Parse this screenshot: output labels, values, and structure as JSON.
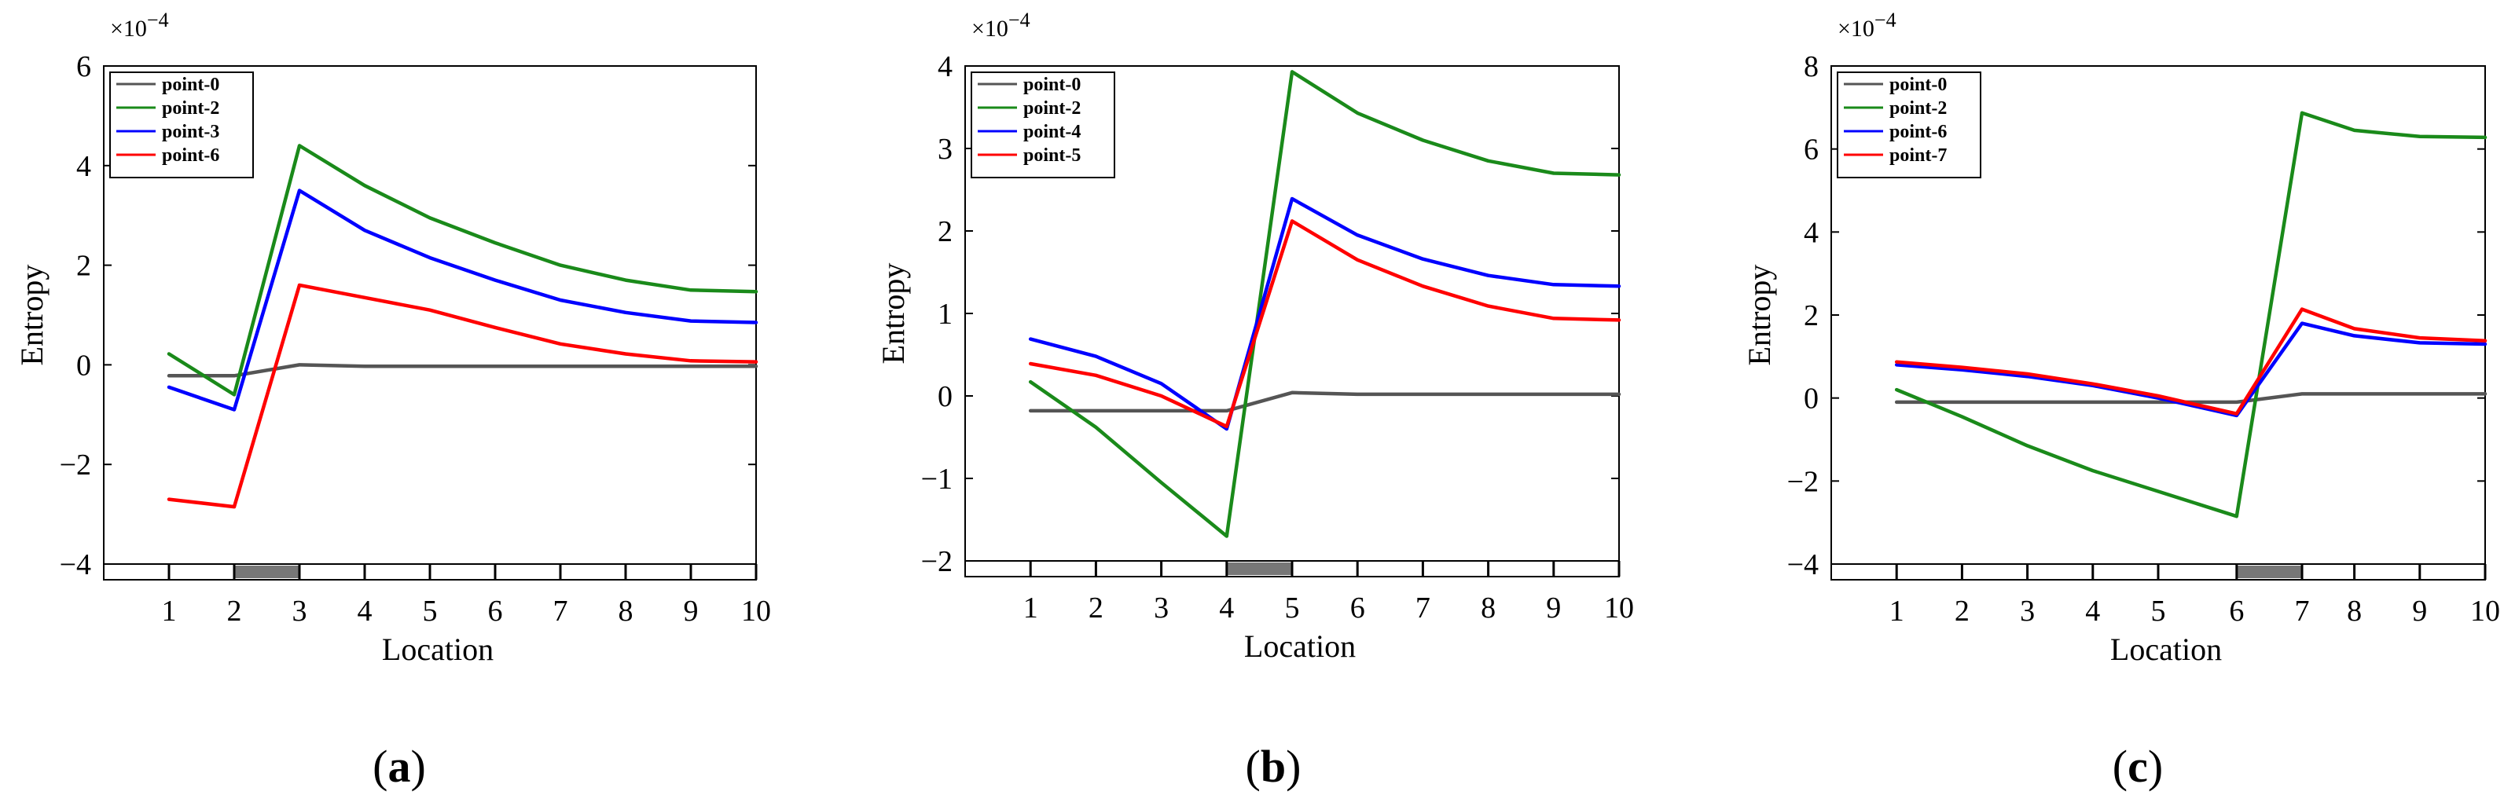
{
  "chart_data": [
    {
      "type": "line",
      "caption": "(a)",
      "xlabel": "Location",
      "ylabel": "Entropy",
      "exponent": "×10",
      "exponent_power": "−4",
      "xlim": [
        0,
        10
      ],
      "ylim": [
        -4,
        6
      ],
      "x_ticks": [
        "1",
        "2",
        "3",
        "4",
        "5",
        "6",
        "7",
        "8",
        "9",
        "10"
      ],
      "y_ticks": [
        {
          "value": -4,
          "label": "−4"
        },
        {
          "value": -2,
          "label": "−2"
        },
        {
          "value": 0,
          "label": "0"
        },
        {
          "value": 2,
          "label": "2"
        },
        {
          "value": 4,
          "label": "4"
        },
        {
          "value": 6,
          "label": "6"
        }
      ],
      "highlight_segment": [
        2,
        3
      ],
      "legend_position": "top-left",
      "x": [
        1,
        2,
        3,
        4,
        5,
        6,
        7,
        8,
        9,
        10
      ],
      "series": [
        {
          "name": "point-0",
          "color": "#555555",
          "values": [
            -0.22,
            -0.22,
            0.0,
            -0.03,
            -0.03,
            -0.03,
            -0.03,
            -0.03,
            -0.03,
            -0.03
          ]
        },
        {
          "name": "point-2",
          "color": "#1a8a1a",
          "values": [
            0.22,
            -0.6,
            4.4,
            3.6,
            2.95,
            2.45,
            2.0,
            1.7,
            1.5,
            1.47
          ]
        },
        {
          "name": "point-3",
          "color": "#0000ff",
          "values": [
            -0.45,
            -0.9,
            3.5,
            2.7,
            2.15,
            1.7,
            1.3,
            1.05,
            0.88,
            0.85
          ]
        },
        {
          "name": "point-6",
          "color": "#ff0000",
          "values": [
            -2.7,
            -2.85,
            1.6,
            1.35,
            1.1,
            0.75,
            0.42,
            0.22,
            0.08,
            0.06
          ]
        }
      ]
    },
    {
      "type": "line",
      "caption": "(b)",
      "xlabel": "Location",
      "ylabel": "Entropy",
      "exponent": "×10",
      "exponent_power": "−4",
      "xlim": [
        0,
        10
      ],
      "ylim": [
        -2,
        4
      ],
      "x_ticks": [
        "1",
        "2",
        "3",
        "4",
        "5",
        "6",
        "7",
        "8",
        "9",
        "10"
      ],
      "y_ticks": [
        {
          "value": -2,
          "label": "−2"
        },
        {
          "value": -1,
          "label": "−1"
        },
        {
          "value": 0,
          "label": "0"
        },
        {
          "value": 1,
          "label": "1"
        },
        {
          "value": 2,
          "label": "2"
        },
        {
          "value": 3,
          "label": "3"
        },
        {
          "value": 4,
          "label": "4"
        }
      ],
      "highlight_segment": [
        4,
        5
      ],
      "legend_position": "top-left",
      "x": [
        1,
        2,
        3,
        4,
        5,
        6,
        7,
        8,
        9,
        10
      ],
      "series": [
        {
          "name": "point-0",
          "color": "#555555",
          "values": [
            -0.18,
            -0.18,
            -0.18,
            -0.18,
            0.04,
            0.02,
            0.02,
            0.02,
            0.02,
            0.02
          ]
        },
        {
          "name": "point-2",
          "color": "#1a8a1a",
          "values": [
            0.17,
            -0.38,
            -1.05,
            -1.7,
            3.93,
            3.43,
            3.1,
            2.85,
            2.7,
            2.68
          ]
        },
        {
          "name": "point-4",
          "color": "#0000ff",
          "values": [
            0.69,
            0.48,
            0.15,
            -0.4,
            2.39,
            1.95,
            1.66,
            1.46,
            1.35,
            1.33
          ]
        },
        {
          "name": "point-5",
          "color": "#ff0000",
          "values": [
            0.39,
            0.25,
            0.0,
            -0.37,
            2.12,
            1.65,
            1.33,
            1.09,
            0.94,
            0.92
          ]
        }
      ]
    },
    {
      "type": "line",
      "caption": "(c)",
      "xlabel": "Location",
      "ylabel": "Entropy",
      "exponent": "×10",
      "exponent_power": "−4",
      "xlim": [
        0,
        10
      ],
      "ylim": [
        -4,
        8
      ],
      "x_ticks": [
        "1",
        "2",
        "3",
        "4",
        "5",
        "6",
        "7",
        "8",
        "9",
        "10"
      ],
      "y_ticks": [
        {
          "value": -4,
          "label": "−4"
        },
        {
          "value": -2,
          "label": "−2"
        },
        {
          "value": 0,
          "label": "0"
        },
        {
          "value": 2,
          "label": "2"
        },
        {
          "value": 4,
          "label": "4"
        },
        {
          "value": 6,
          "label": "6"
        },
        {
          "value": 8,
          "label": "8"
        }
      ],
      "highlight_segment": [
        6.2,
        7.2
      ],
      "legend_position": "top-left",
      "x": [
        1,
        2,
        3,
        4,
        5,
        6.2,
        7.2,
        8,
        9,
        10
      ],
      "series": [
        {
          "name": "point-0",
          "color": "#555555",
          "values": [
            -0.1,
            -0.1,
            -0.1,
            -0.1,
            -0.1,
            -0.1,
            0.1,
            0.1,
            0.1,
            0.1
          ]
        },
        {
          "name": "point-2",
          "color": "#1a8a1a",
          "values": [
            0.2,
            -0.45,
            -1.15,
            -1.75,
            -2.25,
            -2.85,
            6.87,
            6.45,
            6.3,
            6.28
          ]
        },
        {
          "name": "point-6",
          "color": "#0000ff",
          "values": [
            0.8,
            0.68,
            0.52,
            0.3,
            0.0,
            -0.42,
            1.8,
            1.5,
            1.33,
            1.3
          ]
        },
        {
          "name": "point-7",
          "color": "#ff0000",
          "values": [
            0.87,
            0.74,
            0.58,
            0.34,
            0.05,
            -0.38,
            2.14,
            1.67,
            1.45,
            1.38
          ]
        }
      ]
    }
  ]
}
